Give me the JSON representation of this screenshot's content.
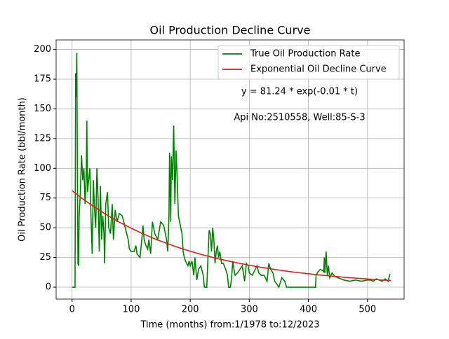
{
  "chart_data": {
    "type": "line",
    "title": "Oil Production Decline Curve",
    "xlabel": "Time (months) from:1/1978 to:12/2023",
    "ylabel": "Oil Production Rate (bbl/month)",
    "annotations": [
      "y = 81.24 * exp(-0.01 * t)",
      "Api No:2510558, Well:85-S-3"
    ],
    "xlim": [
      -27,
      562
    ],
    "ylim": [
      -10,
      208
    ],
    "xticks": [
      0,
      100,
      200,
      300,
      400,
      500
    ],
    "yticks": [
      0,
      25,
      50,
      75,
      100,
      125,
      150,
      175,
      200
    ],
    "grid": true,
    "legend": "upper right",
    "series": [
      {
        "name": "True Oil Production Rate",
        "color": "#008000",
        "x": [
          0,
          5,
          6,
          7,
          8,
          9,
          10,
          11,
          12,
          14,
          16,
          18,
          20,
          22,
          24,
          25,
          26,
          28,
          30,
          32,
          34,
          36,
          38,
          40,
          42,
          44,
          46,
          48,
          50,
          52,
          54,
          55,
          57,
          60,
          62,
          65,
          68,
          70,
          73,
          76,
          80,
          85,
          90,
          95,
          97,
          100,
          105,
          108,
          110,
          115,
          118,
          120,
          122,
          125,
          128,
          130,
          133,
          136,
          140,
          145,
          150,
          155,
          160,
          162,
          164,
          165,
          167,
          168,
          170,
          172,
          174,
          176,
          178,
          180,
          182,
          184,
          186,
          188,
          190,
          192,
          194,
          196,
          198,
          200,
          203,
          206,
          208,
          211,
          214,
          218,
          222,
          224,
          228,
          230,
          232,
          234,
          236,
          238,
          240,
          242,
          244,
          246,
          248,
          250,
          253,
          256,
          260,
          263,
          265,
          268,
          270,
          272,
          274,
          276,
          280,
          284,
          288,
          292,
          295,
          298,
          300,
          305,
          310,
          313,
          316,
          320,
          325,
          330,
          333,
          336,
          340,
          343,
          346,
          350,
          355,
          360,
          363,
          370,
          380,
          400,
          410,
          412,
          413,
          415,
          420,
          424,
          426,
          427,
          428,
          430,
          432,
          434,
          436,
          440,
          445,
          450,
          460,
          470,
          480,
          490,
          500,
          505,
          510,
          515,
          520,
          525,
          530,
          535,
          538
        ],
        "values": [
          0,
          0,
          180,
          160,
          197,
          100,
          20,
          18,
          60,
          80,
          111,
          90,
          100,
          70,
          95,
          140,
          80,
          90,
          100,
          60,
          28,
          90,
          65,
          50,
          100,
          75,
          30,
          85,
          40,
          60,
          45,
          20,
          70,
          80,
          50,
          45,
          70,
          40,
          65,
          55,
          62,
          60,
          50,
          40,
          32,
          30,
          30,
          35,
          28,
          25,
          40,
          52,
          40,
          35,
          32,
          40,
          28,
          55,
          45,
          40,
          55,
          52,
          40,
          30,
          60,
          113,
          55,
          110,
          90,
          136,
          70,
          115,
          90,
          60,
          55,
          50,
          45,
          30,
          25,
          22,
          20,
          18,
          22,
          18,
          22,
          10,
          25,
          6,
          15,
          18,
          10,
          0,
          0,
          25,
          48,
          45,
          30,
          50,
          40,
          20,
          30,
          35,
          25,
          30,
          20,
          20,
          15,
          10,
          0,
          0,
          8,
          22,
          15,
          10,
          12,
          15,
          18,
          5,
          20,
          18,
          12,
          10,
          15,
          18,
          12,
          10,
          10,
          5,
          20,
          15,
          12,
          5,
          3,
          0,
          8,
          5,
          0,
          0,
          0,
          0,
          0,
          0,
          10,
          12,
          15,
          14,
          13,
          25,
          12,
          30,
          10,
          18,
          8,
          12,
          9,
          8,
          6,
          5,
          6,
          5,
          6,
          6,
          5,
          7,
          6,
          5,
          7,
          5,
          11
        ]
      },
      {
        "name": "Exponential Oil Decline Curve",
        "color": "#e41a1c",
        "x": [
          0,
          20,
          40,
          60,
          80,
          100,
          120,
          140,
          160,
          180,
          200,
          220,
          240,
          260,
          280,
          300,
          320,
          340,
          360,
          380,
          400,
          420,
          440,
          460,
          480,
          500,
          520,
          540
        ],
        "values": [
          81.2,
          73.6,
          66.7,
          60.4,
          54.7,
          49.6,
          44.9,
          40.7,
          36.9,
          33.4,
          30.3,
          27.4,
          24.8,
          22.5,
          20.4,
          18.5,
          16.7,
          15.2,
          13.7,
          12.4,
          11.3,
          10.2,
          9.3,
          8.4,
          7.6,
          6.9,
          6.2,
          5.6
        ]
      }
    ]
  }
}
